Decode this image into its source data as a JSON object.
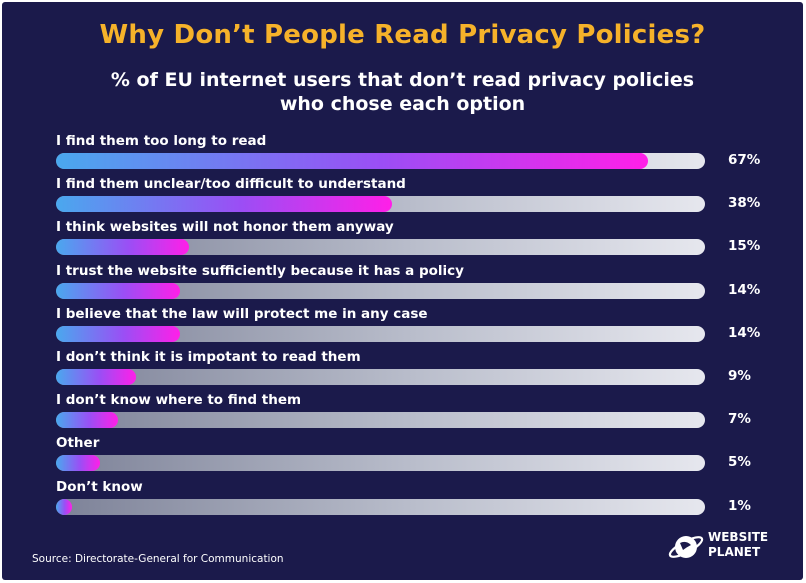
{
  "chart_data": {
    "type": "bar",
    "title": "Why Don’t People Read Privacy Policies?",
    "subtitle_line1": "% of EU internet users that don’t read privacy policies",
    "subtitle_line2": "who chose each option",
    "categories": [
      "I find them too long to read",
      "I find them unclear/too difficult to understand",
      "I think websites will not honor them anyway",
      "I trust the website sufficiently because it has a policy",
      "I believe that the law will protect me in any case",
      "I don’t think it is impotant to read them",
      "I don’t know where to find them",
      "Other",
      "Don’t know"
    ],
    "values": [
      67,
      38,
      15,
      14,
      14,
      9,
      7,
      5,
      1
    ],
    "value_labels": [
      "67%",
      "38%",
      "15%",
      "14%",
      "14%",
      "9%",
      "7%",
      "5%",
      "1%"
    ],
    "xlim": [
      0,
      70
    ],
    "orientation": "horizontal"
  },
  "footer": {
    "source": "Source: Directorate-General for Communication",
    "logo_line1": "WEBSITE",
    "logo_line2": "PLANET"
  },
  "colors": {
    "background": "#1b1a4b",
    "title": "#f6b22a",
    "bar_start": "#4aa8ee",
    "bar_end": "#ff1fe8",
    "track": "#c4c6d2"
  }
}
